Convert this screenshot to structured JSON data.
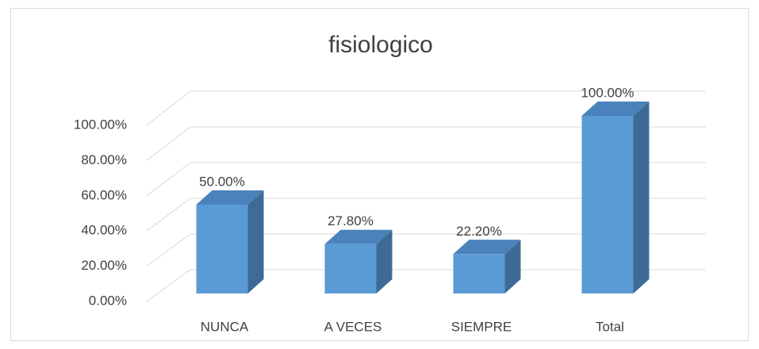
{
  "chart_data": {
    "type": "bar3d",
    "title": "fisiologico",
    "categories": [
      "NUNCA",
      "A VECES",
      "SIEMPRE",
      "Total"
    ],
    "values": [
      50,
      27.8,
      22.2,
      100
    ],
    "value_labels": [
      "50.00%",
      "27.80%",
      "22.20%",
      "100.00%"
    ],
    "color": "#5b9bd5",
    "ylim": [
      0,
      100
    ],
    "yticks": [
      {
        "value": 0,
        "label": "0.00%"
      },
      {
        "value": 20,
        "label": "20.00%"
      },
      {
        "value": 40,
        "label": "40.00%"
      },
      {
        "value": 60,
        "label": "60.00%"
      },
      {
        "value": 80,
        "label": "80.00%"
      },
      {
        "value": 100,
        "label": "100.00%"
      }
    ],
    "grid": true
  }
}
